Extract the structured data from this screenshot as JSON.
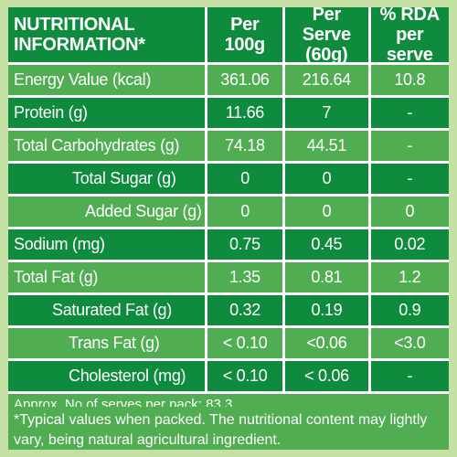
{
  "header": {
    "col0": "NUTRITIONAL INFORMATION*",
    "col1": "Per 100g",
    "col2": "Per Serve (60g)",
    "col3": "% RDA per serve"
  },
  "rows": [
    {
      "name": "Energy Value  (kcal)",
      "per100": "361.06",
      "serve": "216.64",
      "rda": "10.8"
    },
    {
      "name": "Protein  (g)",
      "per100": "11.66",
      "serve": "7",
      "rda": "-"
    },
    {
      "name": "Total Carbohydrates  (g)",
      "per100": "74.18",
      "serve": "44.51",
      "rda": "-"
    },
    {
      "name": "Total Sugar (g)",
      "per100": "0",
      "serve": "0",
      "rda": "-"
    },
    {
      "name": "Added Sugar (g)",
      "per100": "0",
      "serve": "0",
      "rda": "0"
    },
    {
      "name": "Sodium (mg)",
      "per100": "0.75",
      "serve": "0.45",
      "rda": "0.02"
    },
    {
      "name": "Total Fat (g)",
      "per100": "1.35",
      "serve": "0.81",
      "rda": "1.2"
    },
    {
      "name": "Saturated Fat (g)",
      "per100": "0.32",
      "serve": "0.19",
      "rda": "0.9"
    },
    {
      "name": "Trans Fat (g)",
      "per100": "< 0.10",
      "serve": "<0.06",
      "rda": "<3.0"
    },
    {
      "name": "Cholesterol  (mg)",
      "per100": "< 0.10",
      "serve": "< 0.06",
      "rda": "-"
    }
  ],
  "serves_note": "Approx. No of serves per pack: 83.3",
  "footnote": "*Typical values when packed. The nutritional content may lightly vary, being natural agricultural ingredient."
}
